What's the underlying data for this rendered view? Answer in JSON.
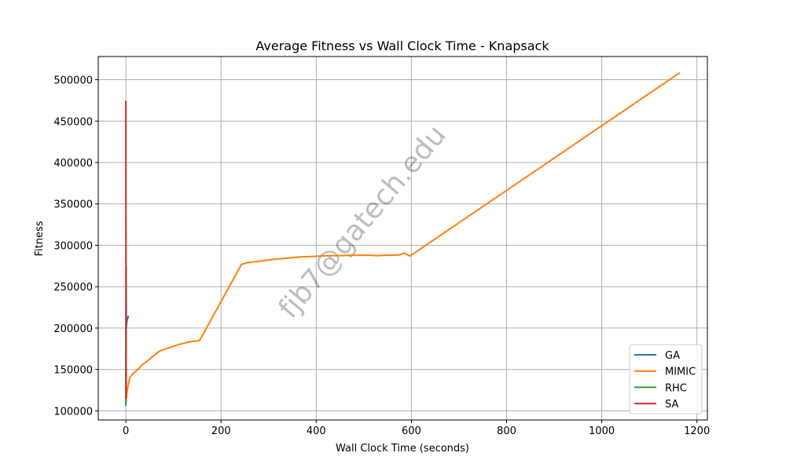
{
  "chart_data": {
    "type": "line",
    "title": "Average Fitness vs Wall Clock Time - Knapsack",
    "xlabel": "Wall Clock Time (seconds)",
    "ylabel": "Fitness",
    "xlim": [
      -58,
      1222
    ],
    "ylim": [
      89000,
      528000
    ],
    "xticks": [
      0,
      200,
      400,
      600,
      800,
      1000,
      1200
    ],
    "yticks": [
      100000,
      150000,
      200000,
      250000,
      300000,
      350000,
      400000,
      450000,
      500000
    ],
    "grid": true,
    "legend_position": "lower-right",
    "watermark": "fjb7@gatech.edu",
    "series": [
      {
        "name": "GA",
        "color": "#1f77b4",
        "x": [
          0,
          0.5,
          1,
          2,
          3,
          4,
          5
        ],
        "y": [
          107000,
          275000,
          200000,
          207000,
          210000,
          212000,
          214000
        ]
      },
      {
        "name": "MIMIC",
        "color": "#ff7f0e",
        "x": [
          0,
          3,
          8,
          15,
          25,
          35,
          45,
          55,
          70,
          90,
          110,
          130,
          155,
          200,
          243,
          255,
          270,
          290,
          310,
          330,
          350,
          370,
          390,
          410,
          430,
          450,
          470,
          490,
          510,
          530,
          545,
          560,
          575,
          585,
          597,
          1163
        ],
        "y": [
          110000,
          125000,
          140000,
          145000,
          150000,
          156000,
          160000,
          165000,
          172000,
          176000,
          180000,
          183000,
          185000,
          232000,
          277000,
          279000,
          280000,
          281500,
          283000,
          284000,
          285000,
          286000,
          286500,
          287000,
          287500,
          287500,
          288000,
          288000,
          288000,
          287500,
          288000,
          288000,
          288500,
          290500,
          287000,
          508000
        ]
      },
      {
        "name": "RHC",
        "color": "#2ca02c",
        "x": [
          0,
          0.2,
          0.4,
          0.6,
          0.8
        ],
        "y": [
          107000,
          150000,
          210000,
          140000,
          150000
        ]
      },
      {
        "name": "SA",
        "color": "#d62728",
        "x": [
          0,
          0.2,
          0.4,
          0.6,
          0.8
        ],
        "y": [
          474000,
          300000,
          150000,
          120000,
          115000
        ]
      }
    ]
  }
}
